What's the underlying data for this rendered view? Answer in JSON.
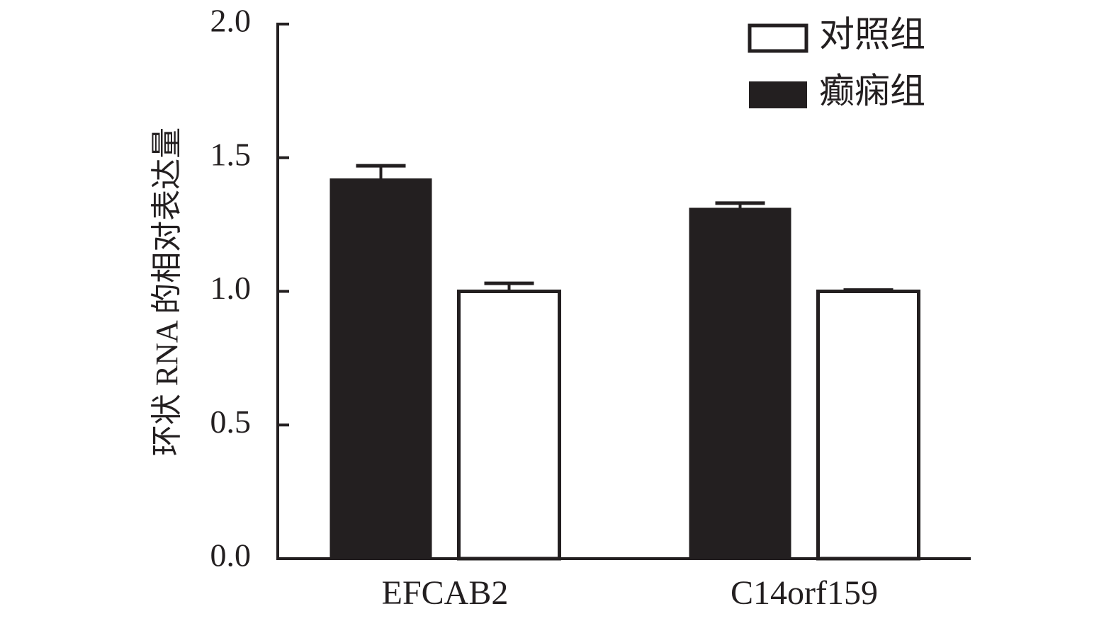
{
  "chart_data": {
    "type": "bar",
    "categories": [
      "EFCAB2",
      "C14orf159"
    ],
    "series": [
      {
        "name": "癫痫组",
        "values": [
          1.42,
          1.31
        ],
        "errors": [
          0.05,
          0.02
        ],
        "fill": "#231f20"
      },
      {
        "name": "对照组",
        "values": [
          1.0,
          1.0
        ],
        "errors": [
          0.03,
          0.005
        ],
        "fill": "#ffffff"
      }
    ],
    "legend_order": [
      1,
      0
    ],
    "ylabel": "环状 RNA 的相对表达量",
    "xlabel": "",
    "ylim": [
      0,
      2.0
    ],
    "yticks": [
      "0.0",
      "0.5",
      "1.0",
      "1.5",
      "2.0"
    ],
    "legend_position": "top-right",
    "grid": false,
    "colors": {
      "ink": "#231f20",
      "paper": "#ffffff"
    }
  }
}
